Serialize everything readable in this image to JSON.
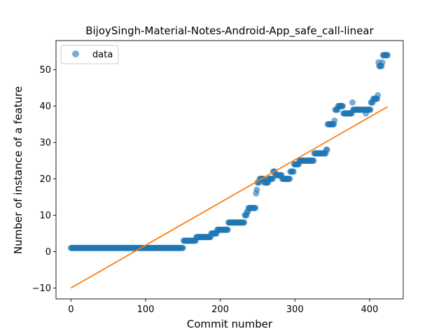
{
  "chart_data": {
    "type": "scatter",
    "title": "BijoySingh-Material-Notes-Android-App_safe_call-linear",
    "xlabel": "Commit number",
    "ylabel": "Number of instance of a feature",
    "xlim": [
      -20,
      445
    ],
    "ylim": [
      -13,
      58
    ],
    "xticks": [
      0,
      100,
      200,
      300,
      400
    ],
    "yticks": [
      -10,
      0,
      10,
      20,
      30,
      40,
      50
    ],
    "grid": false,
    "legend": {
      "position": "top-left",
      "entries": [
        "data"
      ]
    },
    "colors": {
      "points": "#1f77b4",
      "fit": "#ff7f0e"
    },
    "series": [
      {
        "name": "data",
        "kind": "points",
        "segments": [
          {
            "x_from": 0,
            "x_to": 150,
            "y": 1
          },
          {
            "x_from": 151,
            "x_to": 167,
            "y": 3
          },
          {
            "x_from": 168,
            "x_to": 187,
            "y": 4
          },
          {
            "x_from": 188,
            "x_to": 195,
            "y": 5
          },
          {
            "x_from": 196,
            "x_to": 210,
            "y": 6
          },
          {
            "x_from": 211,
            "x_to": 232,
            "y": 8
          },
          {
            "x_from": 233,
            "x_to": 235,
            "y": 10
          },
          {
            "x_from": 236,
            "x_to": 237,
            "y": 11
          },
          {
            "x_from": 238,
            "x_to": 247,
            "y": 12
          },
          {
            "x_from": 248,
            "x_to": 248,
            "y": 16
          },
          {
            "x_from": 249,
            "x_to": 249,
            "y": 17
          },
          {
            "x_from": 250,
            "x_to": 252,
            "y": 19
          },
          {
            "x_from": 253,
            "x_to": 258,
            "y": 20
          },
          {
            "x_from": 259,
            "x_to": 264,
            "y": 19
          },
          {
            "x_from": 265,
            "x_to": 270,
            "y": 20
          },
          {
            "x_from": 271,
            "x_to": 273,
            "y": 22
          },
          {
            "x_from": 274,
            "x_to": 282,
            "y": 21
          },
          {
            "x_from": 283,
            "x_to": 293,
            "y": 20
          },
          {
            "x_from": 294,
            "x_to": 298,
            "y": 22
          },
          {
            "x_from": 299,
            "x_to": 305,
            "y": 24
          },
          {
            "x_from": 306,
            "x_to": 325,
            "y": 25
          },
          {
            "x_from": 326,
            "x_to": 341,
            "y": 27
          },
          {
            "x_from": 342,
            "x_to": 343,
            "y": 28
          },
          {
            "x_from": 344,
            "x_to": 352,
            "y": 35
          },
          {
            "x_from": 353,
            "x_to": 353,
            "y": 36
          },
          {
            "x_from": 354,
            "x_to": 357,
            "y": 39
          },
          {
            "x_from": 358,
            "x_to": 364,
            "y": 40
          },
          {
            "x_from": 365,
            "x_to": 376,
            "y": 38
          },
          {
            "x_from": 377,
            "x_to": 377,
            "y": 41
          },
          {
            "x_from": 378,
            "x_to": 394,
            "y": 39
          },
          {
            "x_from": 395,
            "x_to": 395,
            "y": 38
          },
          {
            "x_from": 396,
            "x_to": 401,
            "y": 39
          },
          {
            "x_from": 402,
            "x_to": 404,
            "y": 41
          },
          {
            "x_from": 405,
            "x_to": 410,
            "y": 42
          },
          {
            "x_from": 411,
            "x_to": 411,
            "y": 43
          },
          {
            "x_from": 412,
            "x_to": 412,
            "y": 52
          },
          {
            "x_from": 413,
            "x_to": 416,
            "y": 51
          },
          {
            "x_from": 417,
            "x_to": 417,
            "y": 52
          },
          {
            "x_from": 418,
            "x_to": 424,
            "y": 54
          }
        ]
      },
      {
        "name": "",
        "kind": "line",
        "x": [
          0,
          424
        ],
        "y": [
          -10,
          39.8
        ]
      }
    ]
  }
}
